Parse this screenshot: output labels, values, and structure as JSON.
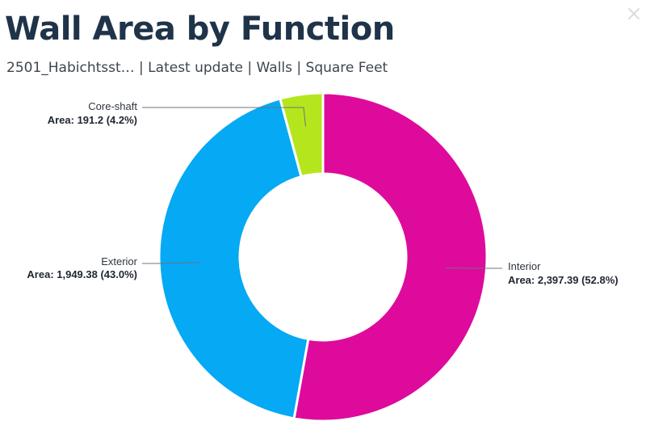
{
  "header": {
    "title": "Wall Area by Function",
    "subtitle": "2501_Habichtsst… | Latest update | Walls | Square Feet"
  },
  "window": {
    "close_icon": "close-icon"
  },
  "chart_data": {
    "type": "pie",
    "donut": true,
    "title": "Wall Area by Function",
    "subtitle": "2501_Habichtsst… | Latest update | Walls | Square Feet",
    "categories": [
      "Interior",
      "Exterior",
      "Core-shaft"
    ],
    "values": [
      2397.39,
      1949.38,
      191.2
    ],
    "percentages": [
      52.8,
      43.0,
      4.2
    ],
    "colors": [
      "#de0a9c",
      "#05a9f4",
      "#b5e61d"
    ],
    "labels": [
      {
        "name": "Interior",
        "value_text": "Area: 2,397.39 (52.8%)"
      },
      {
        "name": "Exterior",
        "value_text": "Area: 1,949.38 (43.0%)"
      },
      {
        "name": "Core-shaft",
        "value_text": "Area: 191.2 (4.2%)"
      }
    ],
    "legend": "none"
  }
}
